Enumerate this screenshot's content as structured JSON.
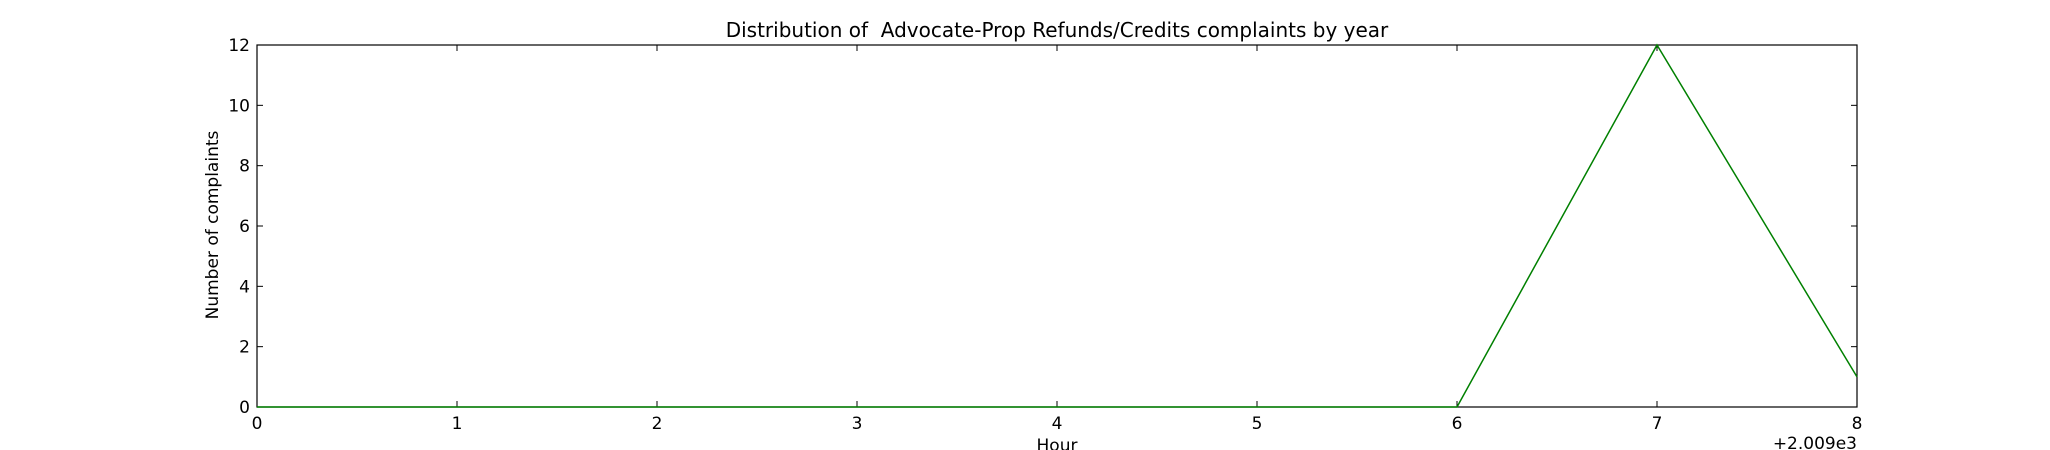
{
  "chart_data": {
    "type": "line",
    "title": "Distribution of  Advocate-Prop Refunds/Credits complaints by year",
    "xlabel": "Hour",
    "ylabel": "Number of complaints",
    "x_offset_label": "+2.009e3",
    "xlim": [
      0,
      8
    ],
    "ylim": [
      0,
      12
    ],
    "xticks": [
      0,
      1,
      2,
      3,
      4,
      5,
      6,
      7,
      8
    ],
    "yticks": [
      0,
      2,
      4,
      6,
      8,
      10,
      12
    ],
    "grid": false,
    "series": [
      {
        "color": "#008000",
        "x": [
          0,
          1,
          2,
          3,
          4,
          5,
          6,
          7,
          8
        ],
        "y": [
          0,
          0,
          0,
          0,
          0,
          0,
          0,
          12,
          1
        ]
      }
    ]
  }
}
